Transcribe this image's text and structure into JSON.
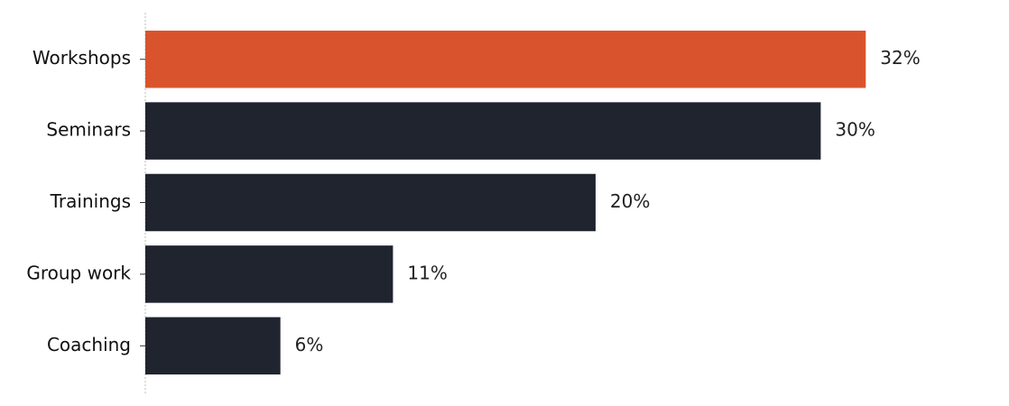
{
  "chart_data": {
    "type": "barh",
    "categories": [
      "Workshops",
      "Seminars",
      "Trainings",
      "Group work",
      "Coaching"
    ],
    "values": [
      32,
      30,
      20,
      11,
      6
    ],
    "value_labels": [
      "32%",
      "30%",
      "20%",
      "11%",
      "6%"
    ],
    "colors": [
      "#d9542c",
      "#20242f",
      "#20242f",
      "#20242f",
      "#20242f"
    ],
    "xlim": [
      0,
      37.6
    ]
  }
}
